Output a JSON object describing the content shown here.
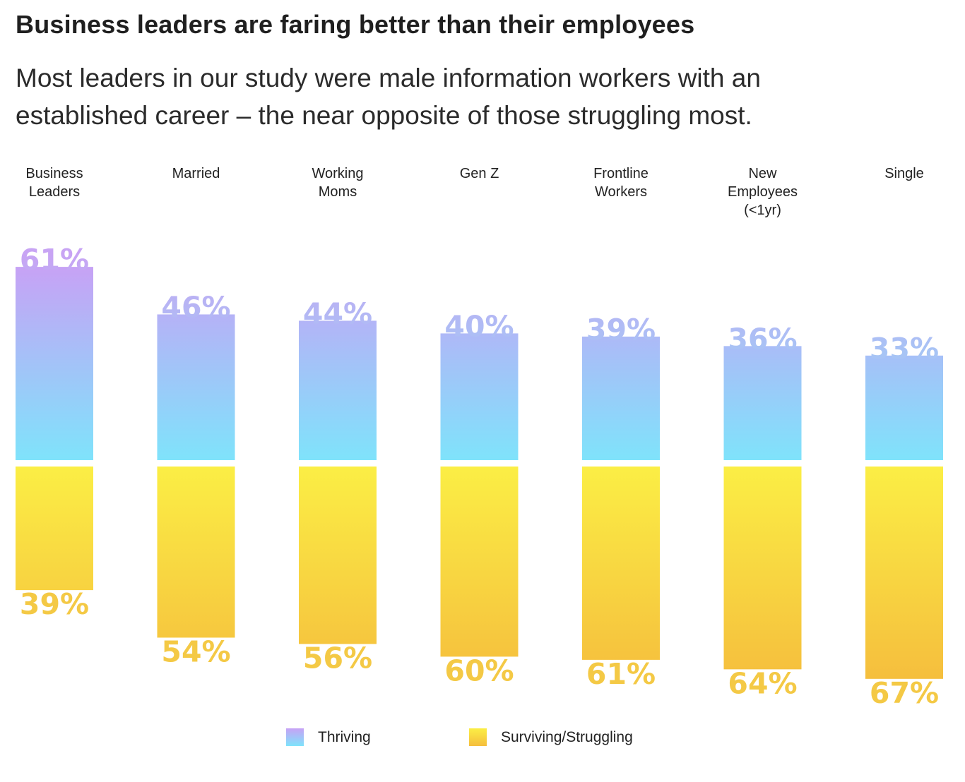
{
  "header": {
    "title": "Business leaders are faring better than their employees",
    "subtitle": "Most leaders in our study were male information workers with an established career – the near opposite of those struggling most."
  },
  "chart_data": {
    "type": "bar",
    "categories": [
      [
        "Business",
        "Leaders"
      ],
      [
        "Married"
      ],
      [
        "Working",
        "Moms"
      ],
      [
        "Gen Z"
      ],
      [
        "Frontline",
        "Workers"
      ],
      [
        "New",
        "Employees",
        "(<1yr)"
      ],
      [
        "Single"
      ]
    ],
    "series": [
      {
        "name": "Thriving",
        "values": [
          61,
          46,
          44,
          40,
          39,
          36,
          33
        ],
        "labels": [
          "61%",
          "46%",
          "44%",
          "40%",
          "39%",
          "36%",
          "33%"
        ],
        "direction": "up"
      },
      {
        "name": "Surviving/Struggling",
        "values": [
          39,
          54,
          56,
          60,
          61,
          64,
          67
        ],
        "labels": [
          "39%",
          "54%",
          "56%",
          "60%",
          "61%",
          "64%",
          "67%"
        ],
        "direction": "down"
      }
    ],
    "legend": {
      "placement": "bottom-center"
    },
    "grid": false,
    "colors": {
      "thriving_top": "#c7a2f5",
      "thriving_bottom": "#7fe3fb",
      "struggling_top": "#fbee45",
      "struggling_bottom": "#f5be3d",
      "thriving_label_top": "#c8a4f4",
      "thriving_label_bottom": "#a7c4f5",
      "struggling_label": "#f4c945"
    }
  },
  "legend": {
    "thriving": "Thriving",
    "struggling": "Surviving/Struggling"
  }
}
